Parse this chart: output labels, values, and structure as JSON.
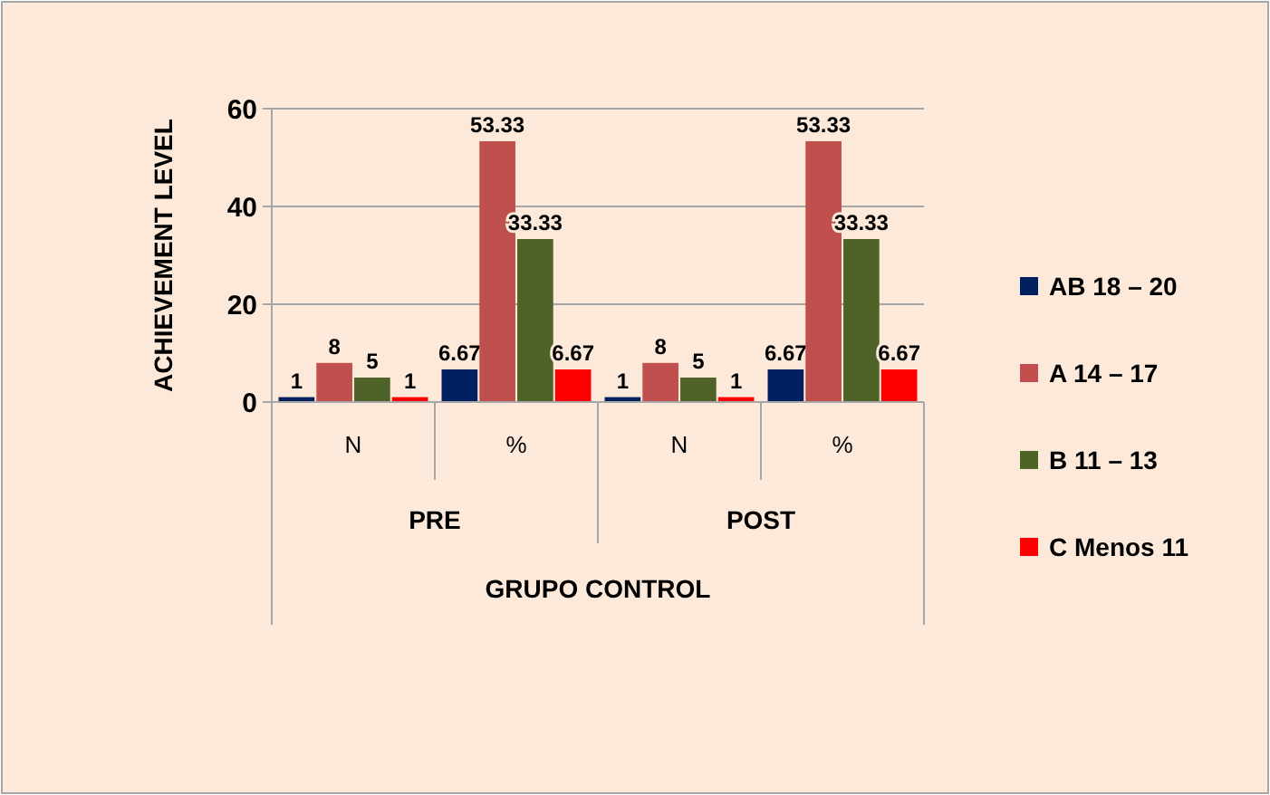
{
  "chart_data": {
    "type": "bar",
    "ylabel": "ACHIEVEMENT  LEVEL",
    "categories": [
      "N",
      "%",
      "N",
      "%"
    ],
    "series": [
      {
        "name": "AB 18 – 20",
        "color": "#002060",
        "values": [
          1,
          6.67,
          1,
          6.67
        ]
      },
      {
        "name": "A 14 – 17",
        "color": "#c0504d",
        "values": [
          8,
          53.33,
          8,
          53.33
        ]
      },
      {
        "name": "B 11 – 13",
        "color": "#4f6228",
        "values": [
          5,
          33.33,
          5,
          33.33
        ]
      },
      {
        "name": "C Menos 11",
        "color": "#ff0000",
        "values": [
          1,
          6.67,
          1,
          6.67
        ]
      }
    ],
    "ylim": [
      0,
      60
    ],
    "yticks": [
      0,
      20,
      40,
      60
    ],
    "grid": "y",
    "legend": "right",
    "data_labels": true,
    "annotations": [
      "PRE",
      "POST",
      "GRUPO CONTROL"
    ]
  }
}
